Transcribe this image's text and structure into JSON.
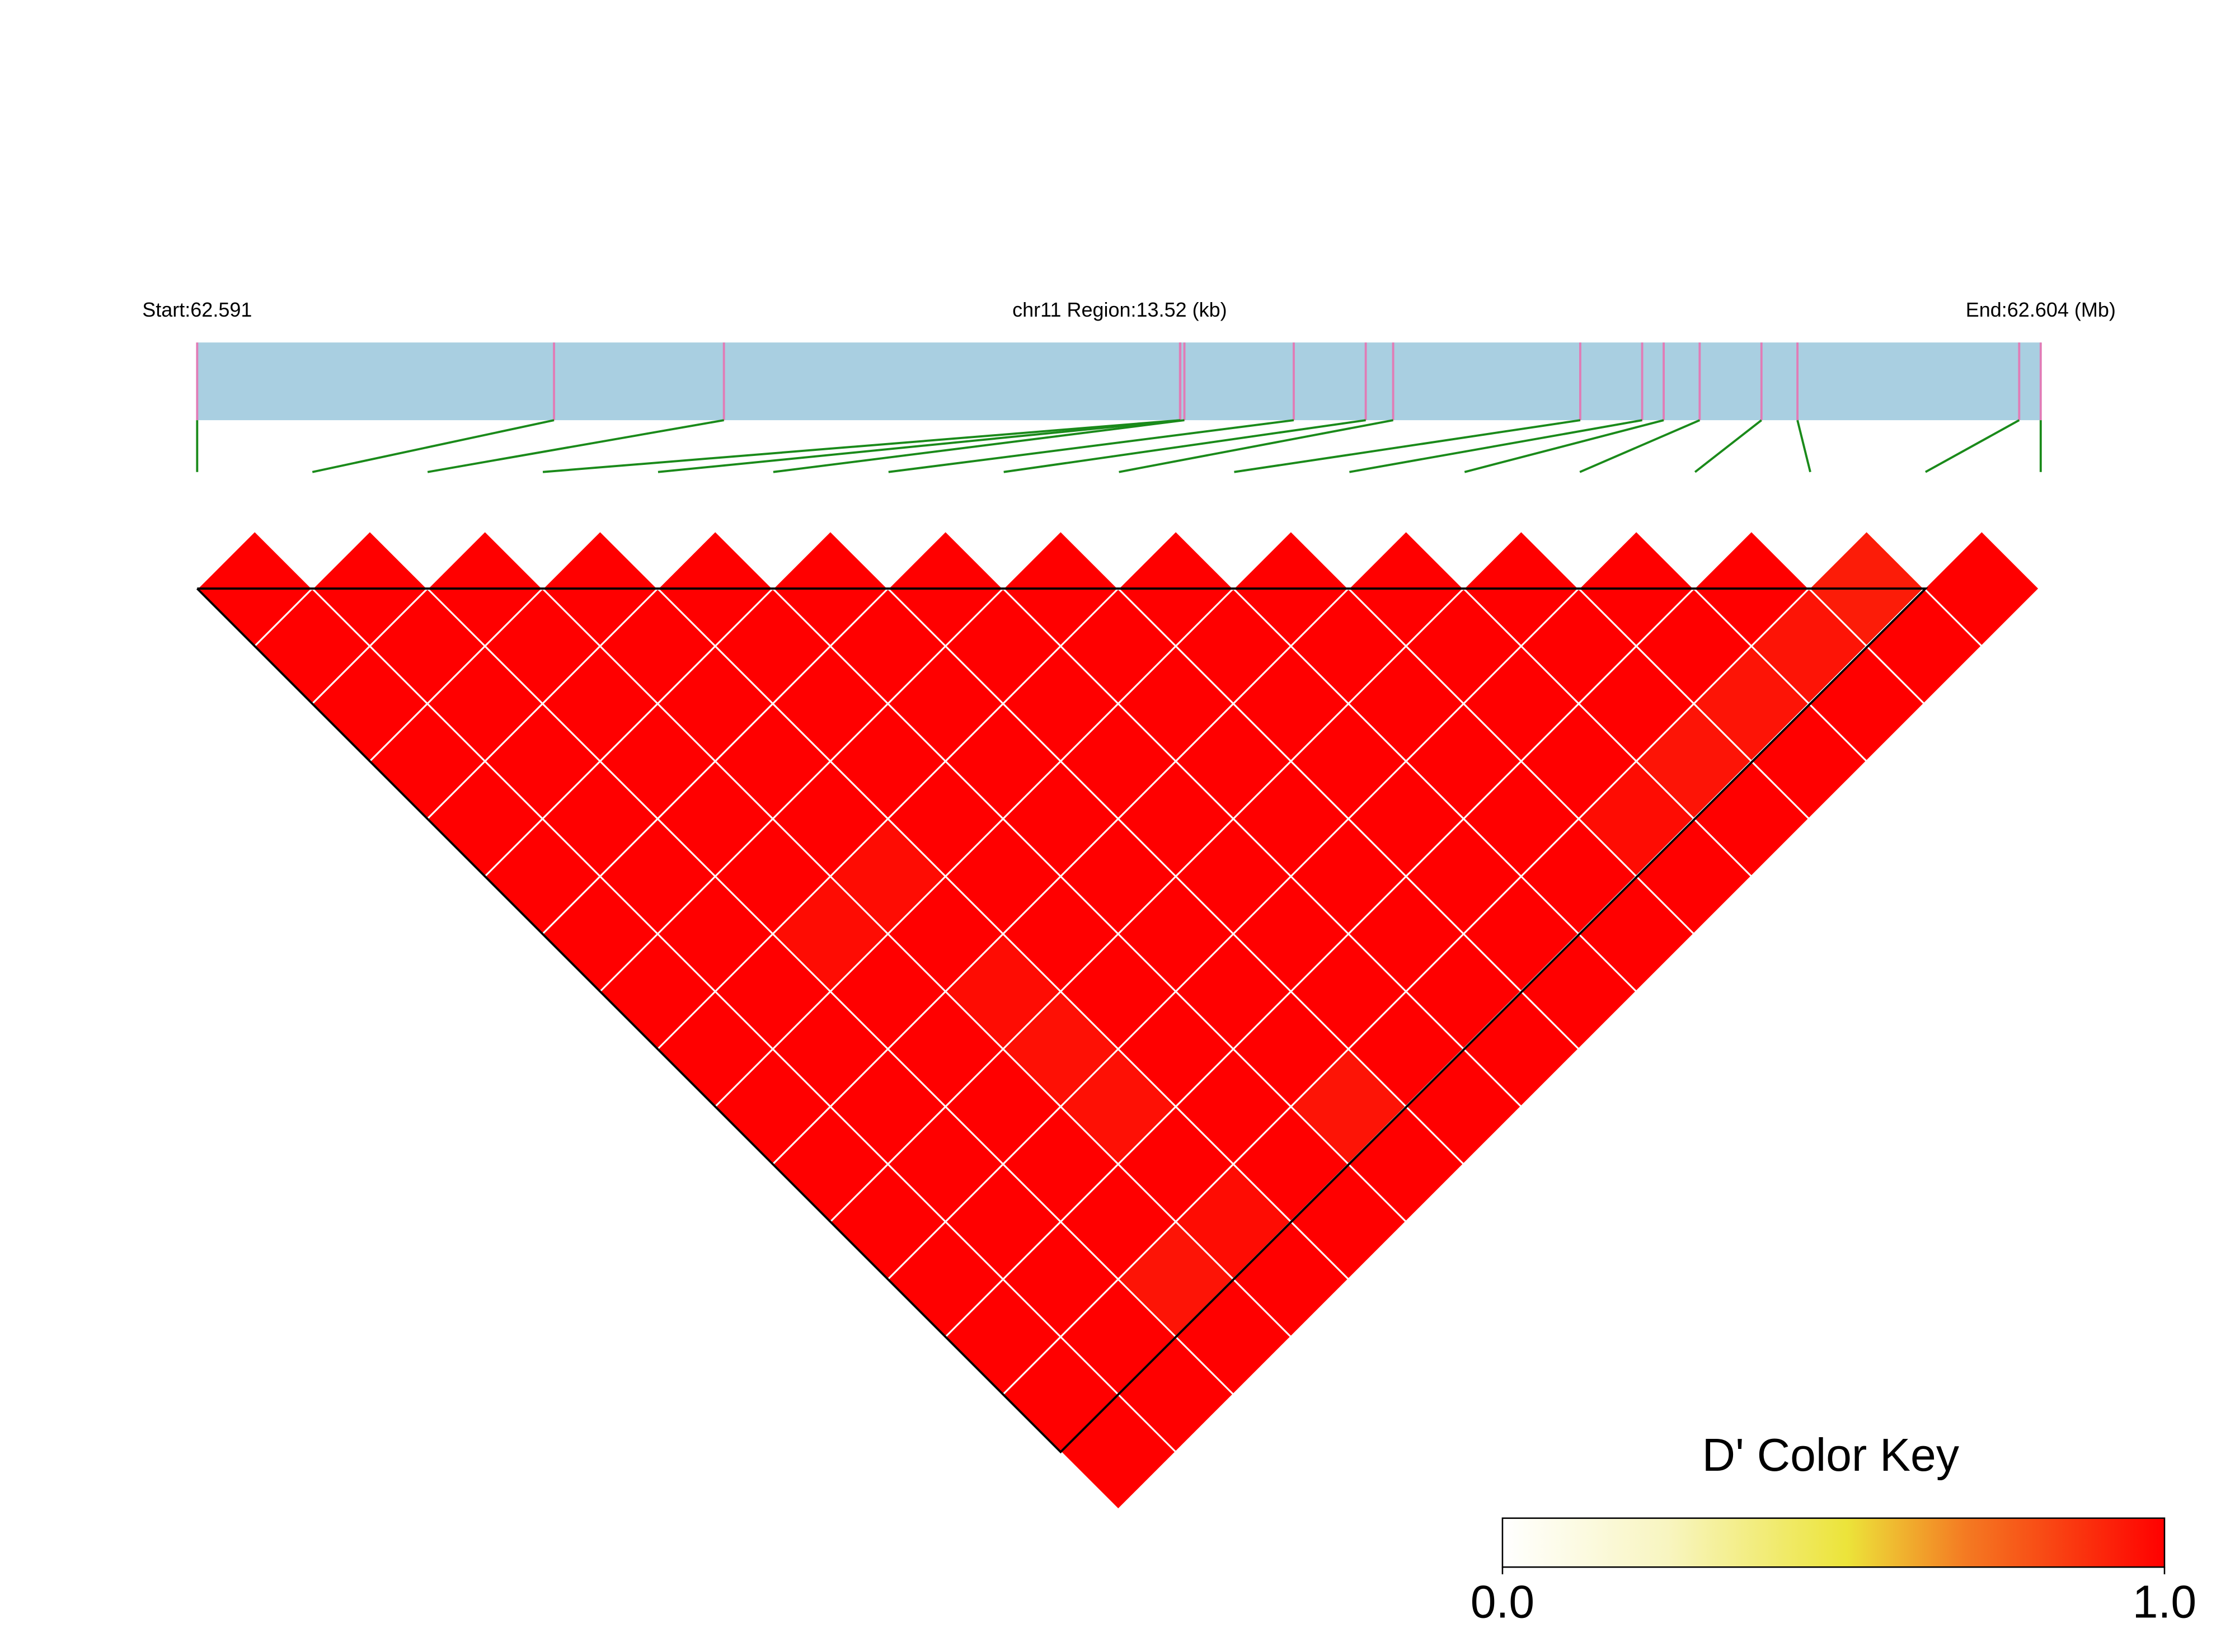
{
  "chart_data": {
    "type": "ld-heatmap",
    "start_label": "Start:62.591",
    "region_label": "chr11 Region:13.52 (kb)",
    "end_label": "End:62.604 (Mb)",
    "xlim": [
      0,
      13.52
    ],
    "snp_positions_kb": [
      0,
      2.617,
      3.863,
      7.208,
      7.21,
      7.24,
      8.042,
      8.57,
      8.771,
      10.143,
      10.597,
      10.755,
      11.019,
      11.472,
      11.736,
      13.362,
      13.52
    ],
    "dprime": [
      [
        1,
        1,
        1,
        1,
        1,
        1,
        1,
        1,
        1,
        1,
        1,
        1,
        1,
        1,
        1,
        1
      ],
      [
        1,
        1,
        1,
        1,
        1,
        1,
        1,
        1,
        1,
        1,
        1,
        1,
        1,
        1,
        1
      ],
      [
        1,
        1,
        1,
        1,
        1,
        1,
        0.97,
        1,
        1,
        1,
        1,
        1,
        0.95,
        1
      ],
      [
        1,
        1,
        1,
        1,
        1,
        0.97,
        1,
        0.97,
        0.96,
        0.96,
        1,
        0.97,
        1
      ],
      [
        1,
        1,
        1,
        1,
        1,
        1,
        1,
        1,
        1,
        1,
        1,
        1
      ],
      [
        1,
        1,
        1,
        1,
        1,
        1,
        1,
        1,
        1,
        0.95,
        1
      ],
      [
        1,
        1,
        1,
        1,
        1,
        1,
        1,
        1,
        1,
        1
      ],
      [
        1,
        1,
        1,
        1,
        1,
        1,
        1,
        1,
        1
      ],
      [
        1,
        1,
        1,
        1,
        1,
        1,
        1,
        1
      ],
      [
        1,
        1,
        1,
        1,
        1,
        1,
        1
      ],
      [
        1,
        1,
        1,
        1,
        0.97,
        1
      ],
      [
        1,
        1,
        1,
        0.95,
        1
      ],
      [
        1,
        1,
        0.95,
        1
      ],
      [
        1,
        0.95,
        1
      ],
      [
        0.93,
        1
      ],
      [
        1
      ]
    ],
    "color_key_title": "D' Color Key",
    "color_key_lim": [
      0,
      1
    ],
    "color_key_ticks": [
      {
        "value": 0,
        "label": "0.0"
      },
      {
        "value": 1,
        "label": "1.0"
      }
    ]
  }
}
